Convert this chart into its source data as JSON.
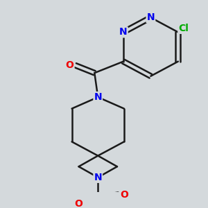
{
  "background_color": "#d4d9dc",
  "bond_color": "#1a1a1a",
  "bond_width": 1.8,
  "atom_colors": {
    "N": "#0000ee",
    "O": "#ee0000",
    "Cl": "#00aa00",
    "C": "#1a1a1a"
  },
  "font_size_atom": 10,
  "figsize": [
    3.0,
    3.0
  ],
  "dpi": 100
}
